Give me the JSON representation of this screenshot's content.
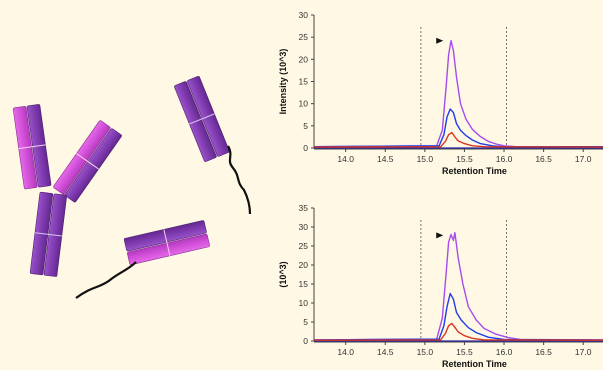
{
  "colors": {
    "background": "#fef8e5",
    "antibody_light": "#d24fd9",
    "antibody_dark": "#8a3fb7",
    "trace_violet": "#a64bf0",
    "trace_blue": "#1f3ee8",
    "trace_red": "#d9361f",
    "baseline": "#2a2aa8",
    "marker": "#111111"
  },
  "illustration": {
    "description_icons": [
      "antibody-icon",
      "antibody-icon",
      "antibody-icon",
      "antibody-icon"
    ]
  },
  "chart_data": [
    {
      "type": "line",
      "xlabel": "Retention Time",
      "ylabel": "Intensity (10^3)",
      "xlim": [
        13.6,
        17.25
      ],
      "ylim": [
        0,
        30
      ],
      "xticks": [
        "14.0",
        "14.5",
        "15.0",
        "15.5",
        "16.0",
        "16.5",
        "17.0"
      ],
      "yticks": [
        "0",
        "5",
        "10",
        "15",
        "20",
        "25",
        "30"
      ],
      "window_lines": [
        14.95,
        16.03
      ],
      "peak_marker": {
        "x": 15.27,
        "y": 24.2
      },
      "series": [
        {
          "color": "violet",
          "x": [
            13.6,
            15.15,
            15.22,
            15.27,
            15.3,
            15.33,
            15.36,
            15.4,
            15.45,
            15.52,
            15.6,
            15.7,
            15.8,
            15.9,
            16.0,
            16.15,
            17.25
          ],
          "values": [
            0.3,
            0.5,
            4,
            14,
            21,
            24.2,
            22,
            16,
            10,
            6.5,
            4.2,
            2.6,
            1.5,
            0.9,
            0.5,
            0.3,
            0.3
          ]
        },
        {
          "color": "blue",
          "x": [
            13.6,
            15.18,
            15.24,
            15.28,
            15.32,
            15.36,
            15.4,
            15.45,
            15.52,
            15.6,
            15.7,
            15.85,
            16.0,
            17.25
          ],
          "values": [
            0.3,
            0.5,
            3,
            7,
            8.8,
            8,
            5.5,
            4,
            2.8,
            1.8,
            1.0,
            0.5,
            0.3,
            0.3
          ]
        },
        {
          "color": "red",
          "x": [
            13.6,
            15.2,
            15.26,
            15.3,
            15.34,
            15.38,
            15.42,
            15.5,
            15.6,
            15.75,
            17.25
          ],
          "values": [
            0.2,
            0.3,
            1.5,
            3,
            3.5,
            2.5,
            1.6,
            1.0,
            0.5,
            0.3,
            0.2
          ]
        }
      ]
    },
    {
      "type": "line",
      "xlabel": "Retention Time",
      "ylabel": "(10^3)",
      "xlim": [
        13.6,
        17.25
      ],
      "ylim": [
        0,
        35
      ],
      "xticks": [
        "14.0",
        "14.5",
        "15.0",
        "15.5",
        "16.0",
        "16.5",
        "17.0"
      ],
      "yticks": [
        "0",
        "5",
        "10",
        "15",
        "20",
        "25",
        "30",
        "35"
      ],
      "window_lines": [
        14.95,
        16.03
      ],
      "peak_marker": {
        "x": 15.27,
        "y": 27.8
      },
      "series": [
        {
          "color": "violet",
          "x": [
            13.6,
            15.15,
            15.22,
            15.27,
            15.3,
            15.33,
            15.36,
            15.38,
            15.42,
            15.48,
            15.55,
            15.65,
            15.75,
            15.9,
            16.05,
            16.2,
            17.25
          ],
          "values": [
            0.3,
            0.5,
            6,
            18,
            26,
            28,
            26.5,
            28.5,
            22,
            15,
            9,
            5.5,
            3.3,
            1.8,
            0.9,
            0.4,
            0.3
          ]
        },
        {
          "color": "blue",
          "x": [
            13.6,
            15.18,
            15.24,
            15.28,
            15.32,
            15.36,
            15.4,
            15.46,
            15.55,
            15.65,
            15.8,
            16.0,
            17.25
          ],
          "values": [
            0.3,
            0.5,
            4,
            9,
            12.5,
            11,
            7.5,
            5.5,
            3.5,
            2.2,
            1.0,
            0.4,
            0.3
          ]
        },
        {
          "color": "red",
          "x": [
            13.6,
            15.2,
            15.26,
            15.3,
            15.34,
            15.38,
            15.42,
            15.5,
            15.6,
            15.75,
            17.25
          ],
          "values": [
            0.2,
            0.3,
            2,
            4,
            4.6,
            3.6,
            2.4,
            1.4,
            0.7,
            0.3,
            0.2
          ]
        }
      ]
    }
  ]
}
